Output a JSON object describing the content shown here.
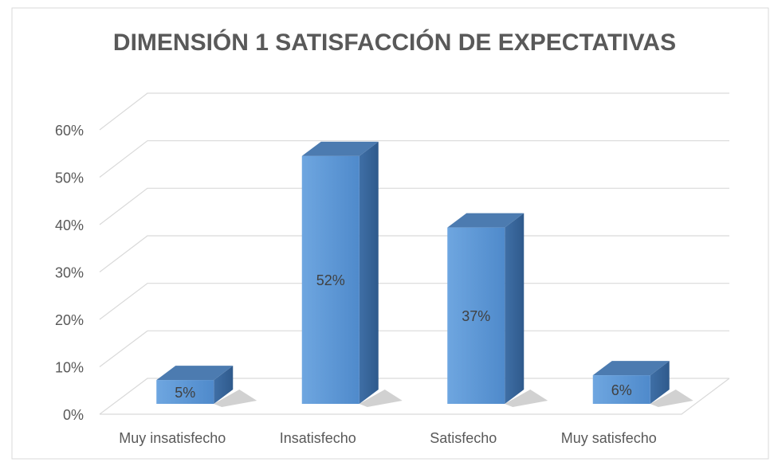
{
  "chart_data": {
    "type": "bar3d",
    "title": "DIMENSIÓN 1 SATISFACCIÓN DE EXPECTATIVAS",
    "categories": [
      "Muy insatisfecho",
      "Insatisfecho",
      "Satisfecho",
      "Muy satisfecho"
    ],
    "values": [
      5,
      52,
      37,
      6
    ],
    "value_labels": [
      "5%",
      "52%",
      "37%",
      "6%"
    ],
    "color": "#5b9bd5",
    "ylim": [
      0,
      60
    ],
    "yticks": [
      {
        "value": 0,
        "label": "0%"
      },
      {
        "value": 10,
        "label": "10%"
      },
      {
        "value": 20,
        "label": "20%"
      },
      {
        "value": 30,
        "label": "30%"
      },
      {
        "value": 40,
        "label": "40%"
      },
      {
        "value": 50,
        "label": "50%"
      },
      {
        "value": 60,
        "label": "60%"
      }
    ],
    "grid": true
  }
}
